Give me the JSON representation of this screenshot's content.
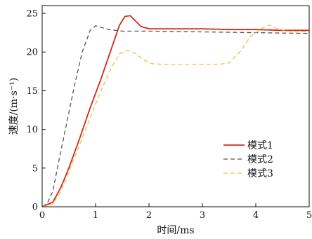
{
  "chart_data": {
    "type": "line",
    "xlabel": "时间/ms",
    "ylabel": "速度/(m·s⁻¹)",
    "xlim": [
      0,
      5
    ],
    "ylim": [
      0,
      26
    ],
    "xticks": [
      0,
      1,
      2,
      3,
      4,
      5
    ],
    "yticks": [
      0,
      5,
      10,
      15,
      20,
      25
    ],
    "grid": false,
    "legend_position": "lower-right",
    "series": [
      {
        "name": "模式1",
        "color": "#d42a1c",
        "dash": "solid",
        "x": [
          0,
          0.2,
          0.35,
          0.5,
          0.7,
          0.9,
          1.1,
          1.3,
          1.45,
          1.55,
          1.65,
          1.75,
          1.85,
          2.0,
          2.5,
          3.0,
          3.5,
          4.0,
          4.5,
          5.0
        ],
        "y": [
          0,
          0.6,
          2.5,
          5.0,
          8.8,
          12.8,
          16.5,
          20.5,
          23.5,
          24.6,
          24.7,
          24.0,
          23.3,
          23.0,
          23.0,
          23.0,
          22.9,
          22.9,
          22.8,
          22.8
        ]
      },
      {
        "name": "模式2",
        "color": "#555555",
        "dash": "dashed",
        "x": [
          0,
          0.1,
          0.2,
          0.3,
          0.45,
          0.6,
          0.75,
          0.9,
          1.0,
          1.1,
          1.25,
          1.5,
          2.0,
          3.0,
          4.0,
          5.0
        ],
        "y": [
          0,
          0.5,
          2.0,
          5.5,
          10.5,
          15.5,
          20.0,
          22.8,
          23.4,
          23.2,
          22.9,
          22.7,
          22.7,
          22.6,
          22.5,
          22.4
        ]
      },
      {
        "name": "模式3",
        "color": "#e6c24a",
        "dash": "dashed",
        "x": [
          0,
          0.2,
          0.35,
          0.5,
          0.7,
          0.9,
          1.1,
          1.3,
          1.45,
          1.6,
          1.75,
          1.9,
          2.05,
          2.3,
          2.6,
          3.0,
          3.3,
          3.5,
          3.7,
          3.9,
          4.1,
          4.25,
          4.4,
          4.6,
          5.0
        ],
        "y": [
          0,
          0.4,
          2.0,
          4.5,
          8.0,
          11.5,
          15.0,
          18.0,
          19.8,
          20.2,
          19.8,
          19.0,
          18.5,
          18.4,
          18.4,
          18.4,
          18.4,
          18.6,
          20.0,
          22.0,
          23.0,
          23.5,
          23.0,
          22.7,
          22.6
        ]
      }
    ]
  }
}
